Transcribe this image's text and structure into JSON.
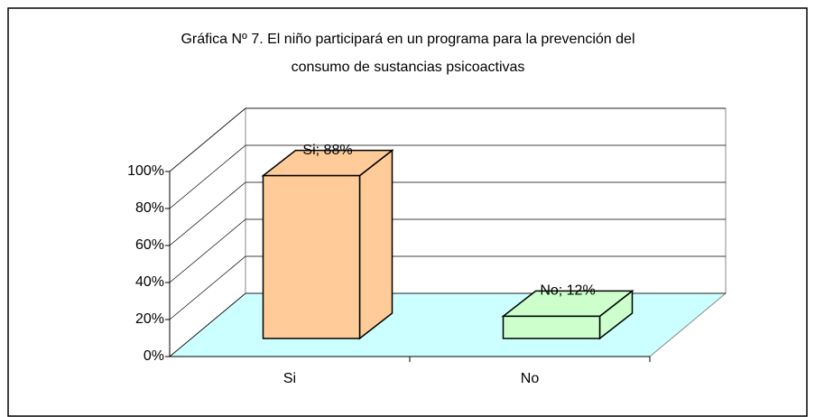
{
  "chart_data": {
    "type": "bar3d",
    "title": [
      "Gráfica Nº 7.  El niño participará en un programa para la prevención del",
      "consumo de sustancias psicoactivas"
    ],
    "categories": [
      "Si",
      "No"
    ],
    "values": [
      88,
      12
    ],
    "value_labels": [
      "Si; 88%",
      "No; 12%"
    ],
    "colors": [
      "#ffcc99",
      "#ccffcc"
    ],
    "floor_color": "#ccffff",
    "ylim": [
      0,
      100
    ],
    "yticks": [
      {
        "value": 0,
        "label": "0%"
      },
      {
        "value": 20,
        "label": "20%"
      },
      {
        "value": 40,
        "label": "40%"
      },
      {
        "value": 60,
        "label": "60%"
      },
      {
        "value": 80,
        "label": "80%"
      },
      {
        "value": 100,
        "label": "100%"
      }
    ],
    "grid": true
  }
}
